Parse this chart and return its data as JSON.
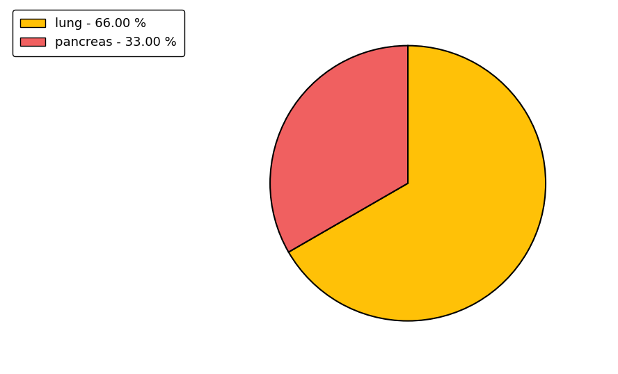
{
  "slices": [
    {
      "label": "lung - 66.00 %",
      "value": 66,
      "color": "#FFC107"
    },
    {
      "label": "pancreas - 33.00 %",
      "value": 33,
      "color": "#F06060"
    }
  ],
  "edge_color": "black",
  "edge_linewidth": 1.5,
  "startangle": 90,
  "counterclock": false,
  "background_color": "#ffffff",
  "legend_fontsize": 13,
  "fig_width": 8.88,
  "fig_height": 5.38,
  "dpi": 100
}
